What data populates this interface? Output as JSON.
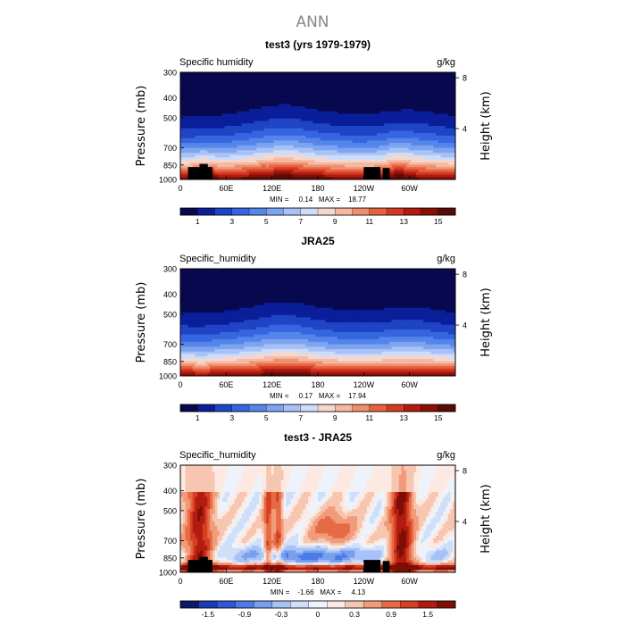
{
  "figure_title": "ANN",
  "colors": {
    "frame": "#000000",
    "seq_palette": [
      "#08084f",
      "#0a1e9a",
      "#1f44c6",
      "#3666df",
      "#5585ea",
      "#7da4f1",
      "#a7c2f6",
      "#cfdcf7",
      "#f5d7cd",
      "#f6b8a1",
      "#ef8f6f",
      "#e5623f",
      "#d33a22",
      "#b31a12",
      "#871007",
      "#5a0b03"
    ],
    "div_palette": [
      "#0a1a6b",
      "#1d3bb0",
      "#2f5ad3",
      "#4d7ae6",
      "#779fee",
      "#a7c2f6",
      "#d0dff8",
      "#eef3fb",
      "#fbe9e2",
      "#f7c6b0",
      "#f19b7b",
      "#e66b45",
      "#d63f22",
      "#b21c10",
      "#7e0f05"
    ]
  },
  "chart_data": [
    {
      "type": "heatmap",
      "title": "test3 (yrs 1979-1979)",
      "left_label": "Specific humidity",
      "right_label": "g/kg",
      "ylabel": "Pressure (mb)",
      "ylabel_right": "Height (km)",
      "x_ticks": [
        "0",
        "60E",
        "120E",
        "180",
        "120W",
        "60W"
      ],
      "x_tick_values": [
        0,
        60,
        120,
        180,
        240,
        300
      ],
      "xlim": [
        0,
        360
      ],
      "y_ticks": [
        "300",
        "400",
        "500",
        "700",
        "850",
        "1000"
      ],
      "y_tick_values": [
        300,
        400,
        500,
        700,
        850,
        1000
      ],
      "ylim": [
        300,
        1000
      ],
      "height_ticks": [
        "8",
        "4"
      ],
      "height_tick_values": [
        8,
        4
      ],
      "stats": "MIN =     0.14   MAX =    18.77",
      "min": 0.14,
      "max": 18.77,
      "colorbar_labels": [
        "1",
        "3",
        "5",
        "7",
        "9",
        "11",
        "13",
        "15"
      ],
      "levels": [
        0,
        1,
        2,
        3,
        4,
        5,
        6,
        7,
        8,
        9,
        10,
        11,
        12,
        13,
        14,
        15,
        16
      ],
      "field": "model",
      "has_topography": true
    },
    {
      "type": "heatmap",
      "title": "JRA25",
      "left_label": "Specific_humidity",
      "right_label": "g/kg",
      "ylabel": "Pressure (mb)",
      "ylabel_right": "Height (km)",
      "x_ticks": [
        "0",
        "60E",
        "120E",
        "180",
        "120W",
        "60W"
      ],
      "x_tick_values": [
        0,
        60,
        120,
        180,
        240,
        300
      ],
      "xlim": [
        0,
        360
      ],
      "y_ticks": [
        "300",
        "400",
        "500",
        "700",
        "850",
        "1000"
      ],
      "y_tick_values": [
        300,
        400,
        500,
        700,
        850,
        1000
      ],
      "ylim": [
        300,
        1000
      ],
      "height_ticks": [
        "8",
        "4"
      ],
      "height_tick_values": [
        8,
        4
      ],
      "stats": "MIN =     0.17   MAX =    17.94",
      "min": 0.17,
      "max": 17.94,
      "colorbar_labels": [
        "1",
        "3",
        "5",
        "7",
        "9",
        "11",
        "13",
        "15"
      ],
      "levels": [
        0,
        1,
        2,
        3,
        4,
        5,
        6,
        7,
        8,
        9,
        10,
        11,
        12,
        13,
        14,
        15,
        16
      ],
      "field": "obs",
      "has_topography": false
    },
    {
      "type": "heatmap",
      "title": "test3 - JRA25",
      "left_label": "Specific_humidity",
      "right_label": "g/kg",
      "ylabel": "Pressure (mb)",
      "ylabel_right": "Height (km)",
      "x_ticks": [
        "0",
        "60E",
        "120E",
        "180",
        "120W",
        "60W"
      ],
      "x_tick_values": [
        0,
        60,
        120,
        180,
        240,
        300
      ],
      "xlim": [
        0,
        360
      ],
      "y_ticks": [
        "300",
        "400",
        "500",
        "700",
        "850",
        "1000"
      ],
      "y_tick_values": [
        300,
        400,
        500,
        700,
        850,
        1000
      ],
      "ylim": [
        300,
        1000
      ],
      "height_ticks": [
        "8",
        "4"
      ],
      "height_tick_values": [
        8,
        4
      ],
      "stats": "MIN =    -1.66   MAX =     4.13",
      "min": -1.66,
      "max": 4.13,
      "colorbar_labels": [
        "-1.5",
        "-0.9",
        "-0.3",
        "0",
        "0.3",
        "0.9",
        "1.5"
      ],
      "levels": [
        -2.1,
        -1.8,
        -1.5,
        -1.2,
        -0.9,
        -0.6,
        -0.3,
        -0.1,
        0,
        0.1,
        0.3,
        0.6,
        0.9,
        1.2,
        1.5,
        1.8
      ],
      "field": "diff",
      "has_topography": true
    }
  ]
}
